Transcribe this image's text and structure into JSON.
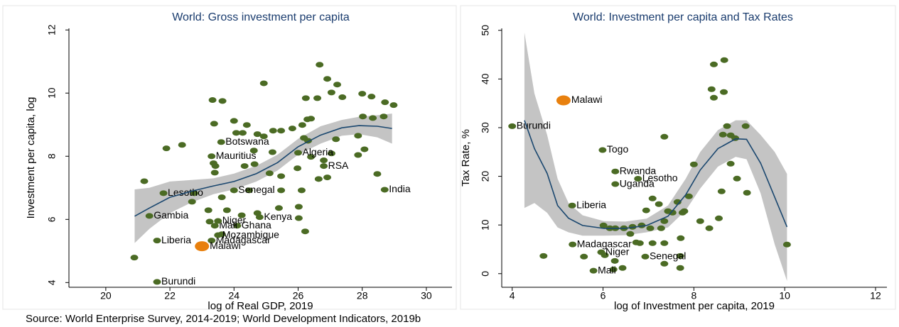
{
  "source": "Source: World Enterprise Survey, 2014-2019; World Development Indicators, 2019b",
  "chart_data": [
    {
      "type": "scatter",
      "title": "World: Gross investment per capita",
      "x_label": "log of Real GDP, 2019",
      "y_label": "Investment per capita, log",
      "xlim": [
        18.85,
        30.8
      ],
      "ylim": [
        3.85,
        12.05
      ],
      "xticks": [
        20,
        22,
        24,
        26,
        28,
        30
      ],
      "yticks": [
        4,
        6,
        8,
        10,
        12
      ],
      "points": {
        "color": "#4b6b24",
        "x": [
          20.89,
          21.2,
          21.89,
          22.38,
          22.76,
          22.69,
          23.33,
          23.64,
          23.38,
          24.0,
          24.93,
          26.67,
          26.91,
          27.22,
          27.04,
          26.24,
          26.6,
          27.38,
          28.0,
          28.29,
          28.71,
          28.98,
          26.29,
          26.4,
          26.13,
          24.4,
          24.73,
          24.93,
          24.27,
          24.07,
          25.22,
          25.47,
          25.82,
          26.31,
          26.18,
          27.18,
          27.87,
          27.87,
          28.07,
          28.67,
          28.33,
          28.02,
          27.04,
          26.4,
          26.8,
          23.42,
          23.4,
          23.36,
          24.33,
          24.64,
          24.62,
          25.2,
          25.11,
          25.47,
          25.98,
          25.47,
          24.47,
          23.62,
          26.11,
          26.64,
          26.91,
          23.2,
          23.78,
          24.24,
          24.73,
          25.4,
          26.02,
          26.02,
          26.22,
          23.24,
          23.62,
          28.47
        ],
        "values": [
          4.79,
          7.21,
          8.25,
          8.36,
          6.83,
          6.56,
          9.78,
          9.75,
          9.03,
          9.12,
          10.31,
          10.9,
          10.45,
          10.27,
          10.02,
          9.84,
          9.84,
          9.87,
          9.98,
          9.89,
          9.71,
          9.62,
          9.17,
          9.19,
          8.99,
          8.99,
          8.7,
          8.63,
          8.74,
          8.74,
          8.81,
          8.81,
          8.88,
          8.49,
          8.58,
          8.54,
          8.65,
          8.04,
          8.22,
          9.26,
          9.21,
          9.26,
          8.09,
          7.98,
          7.87,
          7.69,
          7.48,
          7.78,
          7.69,
          7.75,
          8.18,
          8.13,
          7.46,
          7.37,
          7.62,
          6.92,
          6.92,
          6.7,
          6.92,
          7.28,
          7.33,
          6.29,
          6.29,
          6.13,
          6.2,
          6.36,
          6.4,
          6.04,
          5.62,
          5.93,
          5.53,
          7.44
        ]
      },
      "labeled": {
        "color": "#4b6b24",
        "x": [
          21.6,
          21.6,
          23.3,
          23.5,
          24.1,
          23.4,
          23.5,
          21.36,
          24.8,
          21.8,
          24.0,
          28.7,
          26.8,
          26.0,
          23.3,
          23.6
        ],
        "values": [
          4.02,
          5.33,
          5.33,
          5.5,
          5.8,
          5.8,
          5.95,
          6.11,
          6.07,
          6.83,
          6.92,
          6.94,
          7.69,
          8.11,
          8.0,
          8.45
        ],
        "labels": [
          "Burundi",
          "Liberia",
          "Madagascar",
          "Mozambique",
          "Ghana",
          "Mali",
          "Niger",
          "Gambia",
          "Kenya",
          "Lesotho",
          "Senegal",
          "India",
          "RSA",
          "Algeria",
          "Mauritius",
          "Botswana"
        ]
      },
      "highlight": {
        "color": "#e8800e",
        "x": [
          23.0
        ],
        "values": [
          5.15
        ],
        "labels": [
          "Malawi"
        ]
      },
      "fit": {
        "color": "#1a476f",
        "band_color": "#c4c4c4",
        "x": [
          20.9,
          21.36,
          22.0,
          22.7,
          23.36,
          24.0,
          24.7,
          25.36,
          26.0,
          26.7,
          27.36,
          27.9,
          28.47,
          28.93
        ],
        "values": [
          6.1,
          6.36,
          6.7,
          6.9,
          7.06,
          7.2,
          7.45,
          7.8,
          8.3,
          8.67,
          8.9,
          8.97,
          8.95,
          8.88
        ],
        "lower": [
          5.25,
          5.7,
          6.2,
          6.55,
          6.8,
          6.95,
          7.2,
          7.55,
          8.05,
          8.4,
          8.65,
          8.7,
          8.6,
          8.4
        ],
        "upper": [
          6.95,
          7.0,
          7.2,
          7.25,
          7.3,
          7.45,
          7.7,
          8.05,
          8.55,
          8.95,
          9.15,
          9.25,
          9.3,
          9.35
        ]
      }
    },
    {
      "type": "scatter",
      "title": "World: Investment per capita and Tax Rates",
      "x_label": "log of Investment per capita, 2019",
      "y_label": "Tax Rate, %",
      "xlim": [
        3.77,
        12.25
      ],
      "ylim": [
        -2.8,
        50.4
      ],
      "xticks": [
        4,
        6,
        8,
        10,
        12
      ],
      "yticks": [
        0,
        10,
        20,
        30,
        40,
        50
      ],
      "points": {
        "color": "#4b6b24",
        "x": [
          4.69,
          5.58,
          6.04,
          6.26,
          6.23,
          6.43,
          6.01,
          6.15,
          6.27,
          6.46,
          6.65,
          6.85,
          7.04,
          6.6,
          6.73,
          6.81,
          7.09,
          7.35,
          7.71,
          7.7,
          7.7,
          7.35,
          7.28,
          7.43,
          7.35,
          7.75,
          7.64,
          7.79,
          7.89,
          8.0,
          8.14,
          8.34,
          8.55,
          8.61,
          8.44,
          8.39,
          8.66,
          8.67,
          8.44,
          8.81,
          8.91,
          8.73,
          8.64,
          9.14,
          8.81,
          8.95,
          9.17,
          10.05,
          7.35,
          7.09,
          7.23,
          7.53,
          6.95
        ],
        "values": [
          3.64,
          3.5,
          3.79,
          2.62,
          0.87,
          1.17,
          9.91,
          9.33,
          9.33,
          9.33,
          9.62,
          9.91,
          9.33,
          8.16,
          6.41,
          6.27,
          6.27,
          6.27,
          7.29,
          3.64,
          1.17,
          2.04,
          9.33,
          12.83,
          10.79,
          12.54,
          14.72,
          12.83,
          15.89,
          22.45,
          10.79,
          9.33,
          11.37,
          16.91,
          36.15,
          37.9,
          37.32,
          43.88,
          43.0,
          28.43,
          27.84,
          30.32,
          28.57,
          30.32,
          22.59,
          19.53,
          16.62,
          5.98,
          28.13,
          15.45,
          14.29,
          12.54,
          13.0
        ]
      },
      "labeled": {
        "color": "#4b6b24",
        "x": [
          4.0,
          5.99,
          6.27,
          6.77,
          6.27,
          5.32,
          5.33,
          6.93,
          5.96,
          5.79
        ],
        "values": [
          30.3,
          25.4,
          21.0,
          19.5,
          18.4,
          14.0,
          6.0,
          3.5,
          4.4,
          0.6
        ],
        "labels": [
          "Burundi",
          "Togo",
          "Rwanda",
          "Lesotho",
          "Uganda",
          "Liberia",
          "Madagascar",
          "Senegal",
          "Niger",
          "Mali"
        ]
      },
      "highlight": {
        "color": "#e8800e",
        "x": [
          5.13
        ],
        "values": [
          35.6
        ],
        "labels": [
          "Malawi"
        ]
      },
      "fit": {
        "color": "#1a476f",
        "band_color": "#c4c4c4",
        "x": [
          4.27,
          4.49,
          4.77,
          5.0,
          5.24,
          5.55,
          6.02,
          6.49,
          6.96,
          7.43,
          7.82,
          8.14,
          8.53,
          8.92,
          9.16,
          9.47,
          9.78,
          10.05
        ],
        "values": [
          31.5,
          25.7,
          20.6,
          14.0,
          11.4,
          9.9,
          9.3,
          9.3,
          9.9,
          11.8,
          16.2,
          21.3,
          25.7,
          27.7,
          27.6,
          22.7,
          15.7,
          9.6
        ],
        "lower": [
          13.5,
          14.5,
          12.5,
          9.5,
          8.5,
          7.8,
          7.8,
          7.9,
          8.5,
          9.5,
          13.0,
          17.5,
          22.0,
          24.0,
          23.5,
          16.5,
          6.0,
          -1.5
        ],
        "upper": [
          49.5,
          37,
          28.5,
          19.5,
          14.5,
          12.0,
          10.8,
          10.7,
          11.3,
          14.0,
          19.5,
          25.0,
          29.5,
          31.5,
          31.5,
          28.5,
          25.0,
          20.5
        ]
      }
    }
  ]
}
